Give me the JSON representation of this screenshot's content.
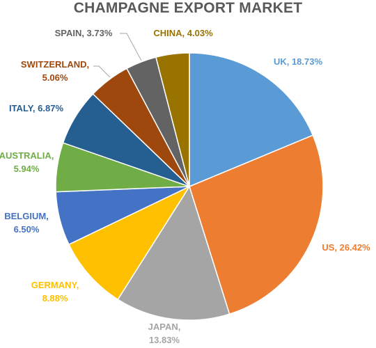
{
  "chart_data": {
    "type": "pie",
    "title": "CHAMPAGNE EXPORT MARKET",
    "slices": [
      {
        "label": "UK",
        "value": 18.73,
        "display": "UK, 18.73%",
        "color": "#5B9BD5"
      },
      {
        "label": "US",
        "value": 26.42,
        "display": "US, 26.42%",
        "color": "#ED7D31"
      },
      {
        "label": "JAPAN",
        "value": 13.83,
        "display": [
          "JAPAN,",
          "13.83%"
        ],
        "color": "#A5A5A5"
      },
      {
        "label": "GERMANY",
        "value": 8.88,
        "display": [
          "GERMANY,",
          "8.88%"
        ],
        "color": "#FFC000"
      },
      {
        "label": "BELGIUM",
        "value": 6.5,
        "display": [
          "BELGIUM,",
          "6.50%"
        ],
        "color": "#4472C4"
      },
      {
        "label": "AUSTRALIA",
        "value": 5.94,
        "display": [
          "AUSTRALIA,",
          "5.94%"
        ],
        "color": "#70AD47"
      },
      {
        "label": "ITALY",
        "value": 6.87,
        "display": "ITALY, 6.87%",
        "color": "#255E91"
      },
      {
        "label": "SWITZERLAND",
        "value": 5.06,
        "display": [
          "SWITZERLAND,",
          "5.06%"
        ],
        "color": "#9E480E"
      },
      {
        "label": "SPAIN",
        "value": 3.73,
        "display": "SPAIN, 3.73%",
        "color": "#636363"
      },
      {
        "label": "CHINA",
        "value": 4.03,
        "display": "CHINA, 4.03%",
        "color": "#997300"
      }
    ],
    "start_angle_deg": 0,
    "direction": "clockwise",
    "legend": "none",
    "label_placement": "outside-end with leader lines"
  }
}
